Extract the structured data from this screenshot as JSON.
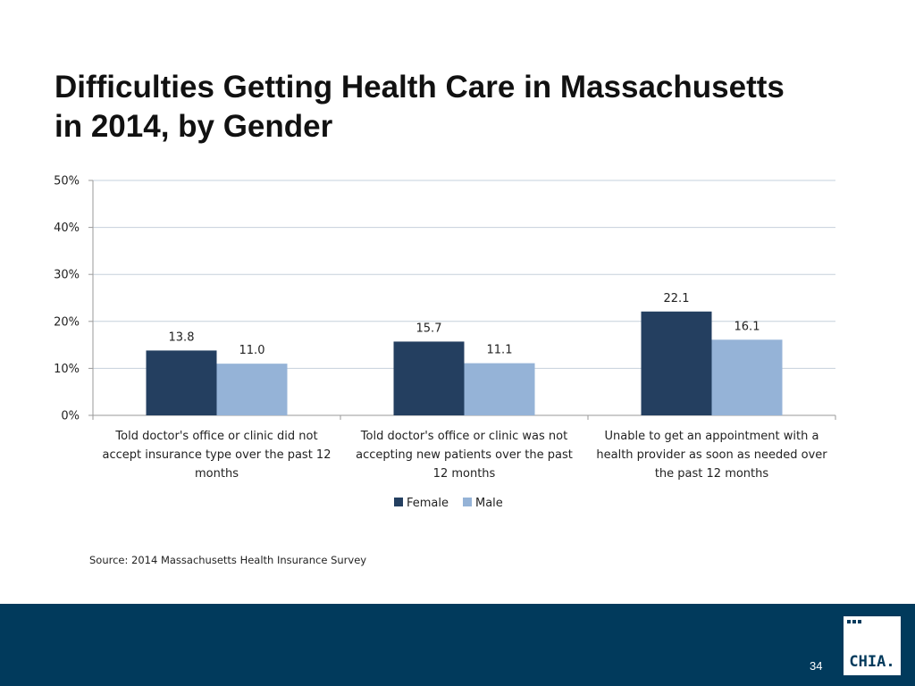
{
  "title_lines": [
    "Difficulties Getting Health Care in Massachusetts",
    "in 2014, by Gender"
  ],
  "source": "Source:  2014 Massachusetts Health Insurance Survey",
  "page_number": "34",
  "logo": {
    "text": "CHIA."
  },
  "colors": {
    "female": "#243f60",
    "male": "#95b3d7",
    "footer": "#013a5c",
    "gridline": "#c6d0dc",
    "axis": "#9a9a9a"
  },
  "chart_data": {
    "type": "bar",
    "title": "Difficulties Getting Health Care in Massachusetts in 2014, by Gender",
    "categories": [
      [
        "Told doctor's office or clinic did not",
        "accept insurance type over the past 12",
        "months"
      ],
      [
        "Told doctor's office or clinic was not",
        "accepting new patients over the past",
        "12 months"
      ],
      [
        "Unable to get an appointment with a",
        "health provider as soon as needed over",
        "the past 12 months"
      ]
    ],
    "series": [
      {
        "name": "Female",
        "values": [
          13.8,
          15.7,
          22.1
        ],
        "labels": [
          "13.8",
          "15.7",
          "22.1"
        ]
      },
      {
        "name": "Male",
        "values": [
          11.0,
          11.1,
          16.1
        ],
        "labels": [
          "11.0",
          "11.1",
          "16.1"
        ]
      }
    ],
    "yticks": [
      0,
      10,
      20,
      30,
      40,
      50
    ],
    "ytick_labels": [
      "0%",
      "10%",
      "20%",
      "30%",
      "40%",
      "50%"
    ],
    "ylim": [
      0,
      50
    ],
    "xlabel": "",
    "ylabel": "",
    "grid": true,
    "legend": "bottom-center"
  }
}
